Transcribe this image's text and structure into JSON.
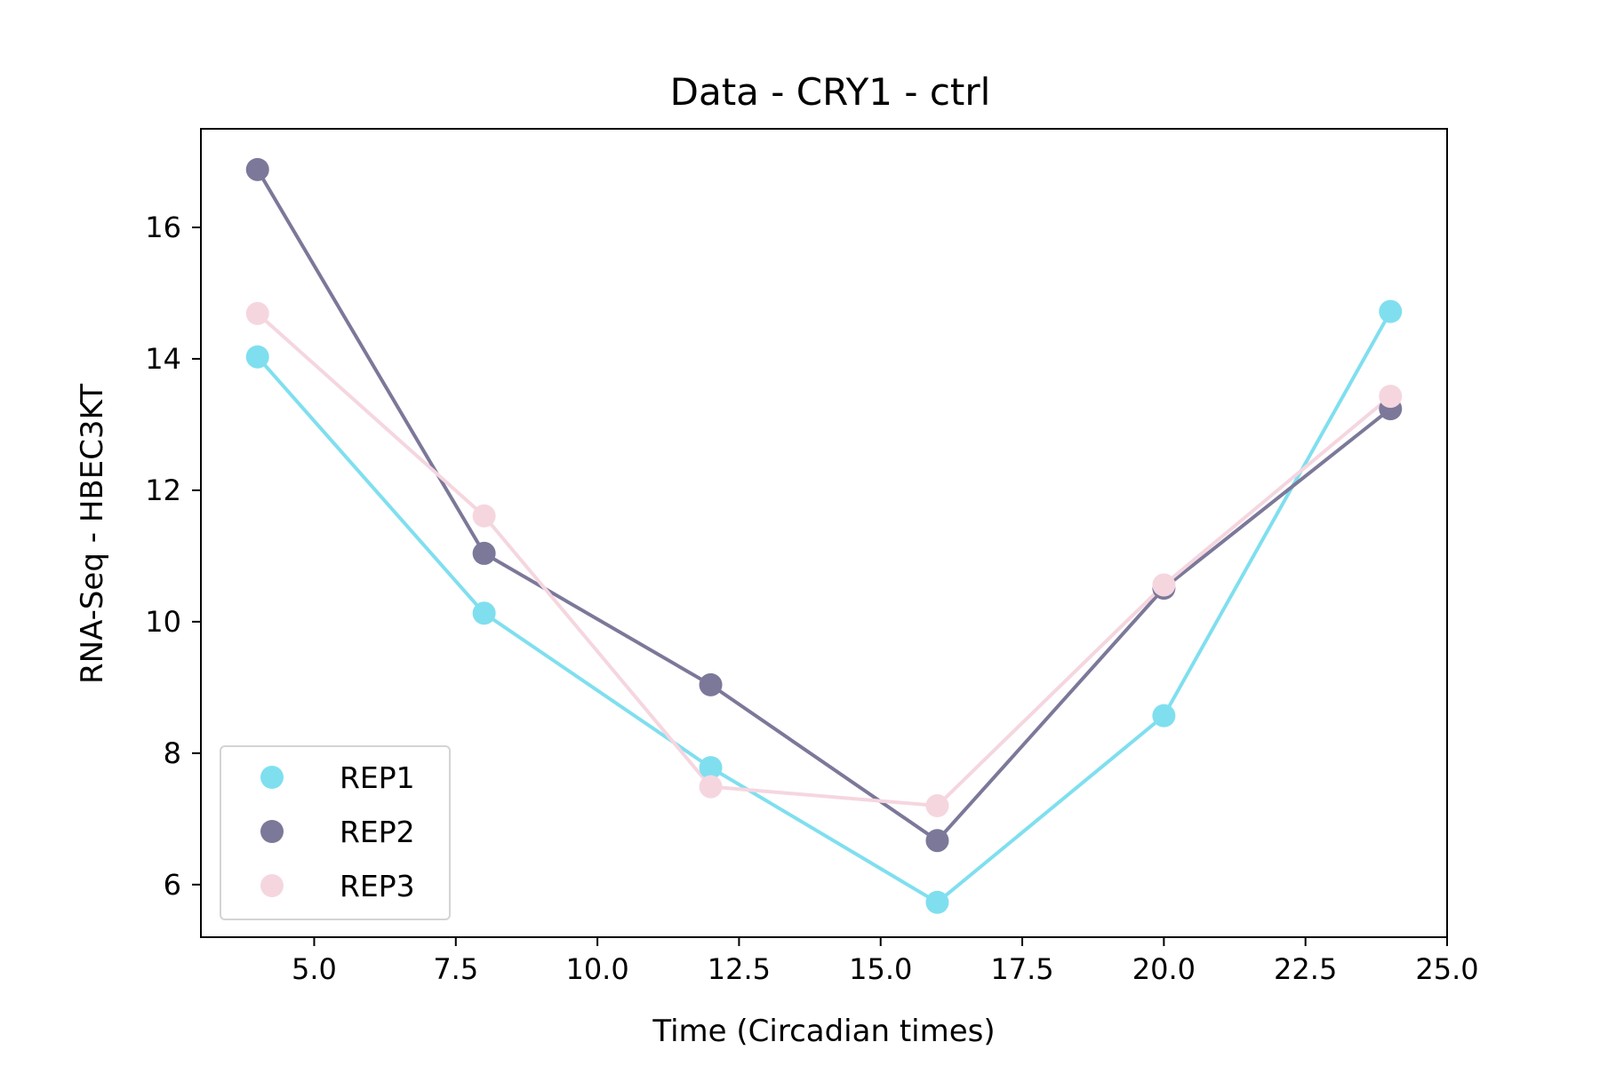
{
  "chart_data": {
    "type": "line",
    "title": "Data - CRY1 - ctrl",
    "xlabel": "Time (Circadian times)",
    "ylabel": "RNA-Seq - HBEC3KT",
    "xlim": [
      3.0,
      25.0
    ],
    "ylim": [
      5.2,
      17.5
    ],
    "xticks": [
      5.0,
      7.5,
      10.0,
      12.5,
      15.0,
      17.5,
      20.0,
      22.5,
      25.0
    ],
    "xtick_labels": [
      "5.0",
      "7.5",
      "10.0",
      "12.5",
      "15.0",
      "17.5",
      "20.0",
      "22.5",
      "25.0"
    ],
    "yticks": [
      6,
      8,
      10,
      12,
      14,
      16
    ],
    "ytick_labels": [
      "6",
      "8",
      "10",
      "12",
      "14",
      "16"
    ],
    "grid": false,
    "legend_position": "lower-left",
    "x": [
      4,
      8,
      12,
      16,
      20,
      24
    ],
    "series": [
      {
        "name": "REP1",
        "color": "#7fdfef",
        "values": [
          14.03,
          10.13,
          7.78,
          5.73,
          8.57,
          14.72
        ]
      },
      {
        "name": "REP2",
        "color": "#7b7899",
        "values": [
          16.88,
          11.04,
          9.04,
          6.67,
          10.51,
          13.24
        ]
      },
      {
        "name": "REP3",
        "color": "#f5d6df",
        "values": [
          14.69,
          11.61,
          7.49,
          7.2,
          10.56,
          13.43
        ]
      }
    ]
  }
}
